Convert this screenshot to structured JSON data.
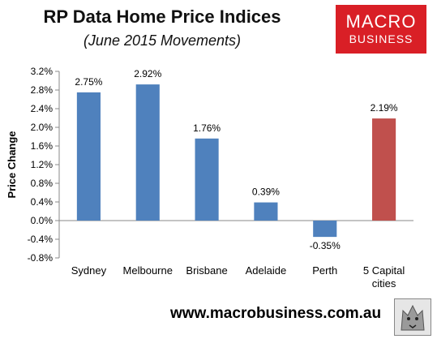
{
  "chart_data": {
    "type": "bar",
    "title": "RP Data Home Price Indices",
    "subtitle": "(June 2015 Movements)",
    "ylabel": "Price Change",
    "categories": [
      "Sydney",
      "Melbourne",
      "Brisbane",
      "Adelaide",
      "Perth",
      "5 Capital cities"
    ],
    "category_lines": [
      [
        "Sydney"
      ],
      [
        "Melbourne"
      ],
      [
        "Brisbane"
      ],
      [
        "Adelaide"
      ],
      [
        "Perth"
      ],
      [
        "5 Capital",
        "cities"
      ]
    ],
    "values": [
      2.75,
      2.92,
      1.76,
      0.39,
      -0.35,
      2.19
    ],
    "data_labels": [
      "2.75%",
      "2.92%",
      "1.76%",
      "0.39%",
      "-0.35%",
      "2.19%"
    ],
    "ylim": [
      -0.8,
      3.2
    ],
    "yticks": [
      3.2,
      2.8,
      2.4,
      2.0,
      1.6,
      1.2,
      0.8,
      0.4,
      0.0,
      -0.4,
      -0.8
    ],
    "ytick_labels": [
      "3.2%",
      "2.8%",
      "2.4%",
      "2.0%",
      "1.6%",
      "1.2%",
      "0.8%",
      "0.4%",
      "0.0%",
      "-0.4%",
      "-0.8%"
    ],
    "colors": [
      "#4f81bd",
      "#4f81bd",
      "#4f81bd",
      "#4f81bd",
      "#4f81bd",
      "#c0504d"
    ],
    "grid": false,
    "legend": "none"
  },
  "branding": {
    "logo_line1": "MACRO",
    "logo_line2": "BUSINESS",
    "url": "www.macrobusiness.com.au",
    "logo_color": "#d91f26"
  }
}
